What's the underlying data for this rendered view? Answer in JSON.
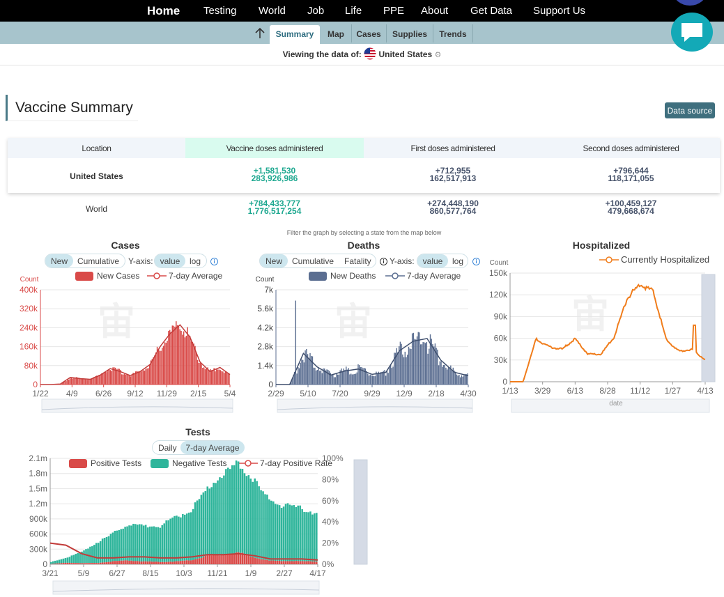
{
  "nav": {
    "items": [
      "Home",
      "Testing",
      "World",
      "Job",
      "Life",
      "PPE",
      "About",
      "Get Data",
      "Support Us"
    ]
  },
  "subnav": {
    "tabs": [
      "Summary",
      "Map",
      "Cases",
      "Supplies",
      "Trends"
    ],
    "active": "Summary"
  },
  "viewing": {
    "label": "Viewing the data of:",
    "country": "United States"
  },
  "summary": {
    "title": "Vaccine Summary",
    "data_source": "Data source",
    "headers": [
      "Location",
      "Vaccine doses administered",
      "First doses administered",
      "Second doses administered"
    ],
    "rows": [
      {
        "location": "United States",
        "vaccine": {
          "delta": "+1,581,530",
          "total": "283,926,986"
        },
        "first": {
          "delta": "+712,955",
          "total": "162,517,913"
        },
        "second": {
          "delta": "+796,644",
          "total": "118,171,055"
        }
      },
      {
        "location": "World",
        "vaccine": {
          "delta": "+784,433,777",
          "total": "1,776,517,254"
        },
        "first": {
          "delta": "+274,448,190",
          "total": "860,577,764"
        },
        "second": {
          "delta": "+100,459,127",
          "total": "479,668,674"
        }
      }
    ],
    "filter_note": "Filter the graph by selecting a state from the map below"
  },
  "charts": {
    "cases": {
      "title": "Cases",
      "toggle": [
        "New",
        "Cumulative"
      ],
      "yaxis_label": "Y-axis:",
      "yaxis": [
        "value",
        "log"
      ],
      "legend": [
        "New Cases",
        "7-day Average"
      ],
      "color": "#d94a48"
    },
    "deaths": {
      "title": "Deaths",
      "toggle": [
        "New",
        "Cumulative",
        "Fatality"
      ],
      "yaxis_label": "Y-axis:",
      "yaxis": [
        "value",
        "log"
      ],
      "legend": [
        "New Deaths",
        "7-day Average"
      ],
      "color": "#5b6e91"
    },
    "hosp": {
      "title": "Hospitalized",
      "legend": [
        "Currently Hospitalized"
      ],
      "color": "#f07d1c",
      "xlabel": "date"
    },
    "tests": {
      "title": "Tests",
      "toggle": [
        "Daily",
        "7-day Average"
      ],
      "legend": [
        "Positive Tests",
        "Negative Tests",
        "7-day Positive Rate"
      ],
      "colors": {
        "positive": "#d94a48",
        "negative": "#2fb59b"
      }
    }
  },
  "chart_data": [
    {
      "type": "bar",
      "title": "Cases",
      "ylabel": "Count",
      "ylim": [
        0,
        400000
      ],
      "yticks": [
        "0",
        "80k",
        "160k",
        "240k",
        "320k",
        "400k"
      ],
      "xticks": [
        "1/22",
        "4/9",
        "6/26",
        "9/12",
        "11/29",
        "2/15",
        "5/4"
      ],
      "x": [
        "1/22",
        "2/15",
        "3/10",
        "4/9",
        "5/3",
        "6/1",
        "6/26",
        "7/20",
        "8/15",
        "9/12",
        "10/10",
        "11/1",
        "11/29",
        "12/20",
        "1/8",
        "1/20",
        "2/15",
        "3/10",
        "4/10",
        "5/4"
      ],
      "series": [
        {
          "name": "New Cases",
          "values": [
            0,
            0,
            2000,
            30000,
            25000,
            22000,
            40000,
            67000,
            55000,
            38000,
            55000,
            85000,
            160000,
            215000,
            252000,
            200000,
            95000,
            55000,
            72000,
            42000
          ]
        },
        {
          "name": "7-day Average",
          "values": [
            0,
            0,
            2000,
            30000,
            25000,
            22000,
            40000,
            67000,
            55000,
            38000,
            55000,
            85000,
            160000,
            215000,
            252000,
            200000,
            95000,
            55000,
            72000,
            42000
          ]
        }
      ]
    },
    {
      "type": "bar",
      "title": "Deaths",
      "ylabel": "Count",
      "ylim": [
        0,
        7000
      ],
      "yticks": [
        "0",
        "1.4k",
        "2.8k",
        "4.2k",
        "5.6k",
        "7k"
      ],
      "xticks": [
        "2/29",
        "5/10",
        "7/20",
        "9/29",
        "12/9",
        "2/18",
        "4/30"
      ],
      "x": [
        "2/29",
        "3/20",
        "4/15",
        "5/10",
        "6/10",
        "7/20",
        "8/15",
        "9/29",
        "11/1",
        "12/9",
        "1/1",
        "1/20",
        "2/18",
        "3/20",
        "4/30"
      ],
      "series": [
        {
          "name": "New Deaths",
          "values": [
            0,
            0,
            2300,
            1300,
            700,
            1000,
            1150,
            750,
            900,
            2500,
            3200,
            3400,
            1800,
            900,
            650
          ]
        },
        {
          "name": "7-day Average",
          "values": [
            0,
            0,
            2300,
            1300,
            700,
            1000,
            1150,
            750,
            900,
            2500,
            3200,
            3400,
            1800,
            900,
            650
          ]
        }
      ]
    },
    {
      "type": "line",
      "title": "Hospitalized",
      "ylabel": "Count",
      "xlabel": "date",
      "ylim": [
        0,
        150000
      ],
      "yticks": [
        "0",
        "30k",
        "60k",
        "90k",
        "120k",
        "150k"
      ],
      "xticks": [
        "1/13",
        "3/29",
        "6/13",
        "8/28",
        "11/12",
        "1/27",
        "4/13"
      ],
      "x": [
        "1/13",
        "3/29",
        "4/15",
        "5/15",
        "6/13",
        "7/20",
        "8/28",
        "10/1",
        "11/12",
        "12/15",
        "1/7",
        "1/27",
        "2/25",
        "3/29",
        "4/13",
        "4/25"
      ],
      "series": [
        {
          "name": "Currently Hospitalized",
          "values": [
            0,
            0,
            59000,
            48000,
            45000,
            59000,
            38000,
            38000,
            62000,
            115000,
            135000,
            125000,
            58000,
            42000,
            45000,
            30000
          ]
        }
      ]
    },
    {
      "type": "bar",
      "title": "Tests",
      "ylim": [
        0,
        2100000
      ],
      "yticks": [
        "0",
        "300k",
        "600k",
        "900k",
        "1.2m",
        "1.5m",
        "1.8m",
        "2.1m"
      ],
      "y2ticks": [
        "0%",
        "20%",
        "40%",
        "60%",
        "80%",
        "100%"
      ],
      "xticks": [
        "3/21",
        "5/9",
        "6/27",
        "8/15",
        "10/3",
        "11/21",
        "1/9",
        "2/27",
        "4/17"
      ],
      "x": [
        "3/21",
        "4/15",
        "5/9",
        "6/1",
        "6/27",
        "7/20",
        "8/15",
        "9/10",
        "10/3",
        "10/27",
        "11/21",
        "12/15",
        "1/9",
        "2/1",
        "2/27",
        "3/20",
        "4/17",
        "5/5"
      ],
      "series": [
        {
          "name": "Positive Tests",
          "values": [
            5000,
            30000,
            22000,
            25000,
            60000,
            75000,
            55000,
            45000,
            55000,
            80000,
            165000,
            200000,
            230000,
            140000,
            70000,
            65000,
            60000,
            55000
          ]
        },
        {
          "name": "Negative Tests",
          "values": [
            40000,
            100000,
            230000,
            420000,
            550000,
            720000,
            700000,
            720000,
            880000,
            1000000,
            1320000,
            1620000,
            1780000,
            1500000,
            1200000,
            1100000,
            1050000,
            950000
          ]
        },
        {
          "name": "7-day Positive Rate",
          "values": [
            20,
            18,
            10,
            6,
            6,
            7,
            7,
            6,
            6,
            7,
            9,
            9,
            10,
            8,
            5,
            5,
            5,
            4
          ]
        }
      ]
    }
  ]
}
